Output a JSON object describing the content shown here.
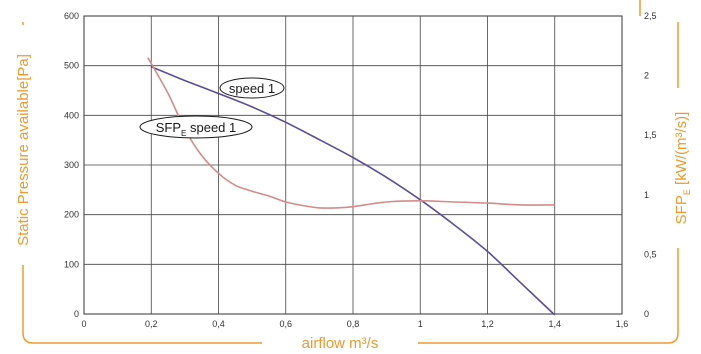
{
  "chart_data": {
    "type": "line",
    "x_label": "airflow m³/s",
    "y_left_label": "Static Pressure available[Pa]",
    "y_right_label": {
      "main": "SFP",
      "sub": "E",
      "rest": " [kW/(m³/s)]"
    },
    "x_range": [
      0,
      1.6
    ],
    "y_left_range": [
      0,
      600
    ],
    "y_right_range": [
      0,
      2.5
    ],
    "x_ticks": [
      "0",
      "0,2",
      "0,4",
      "0,6",
      "0,8",
      "1",
      "1,2",
      "1,4",
      "1,6"
    ],
    "y_left_ticks": [
      "0",
      "100",
      "200",
      "300",
      "400",
      "500",
      "600"
    ],
    "y_right_ticks": [
      "0",
      "0,5",
      "1",
      "1,5",
      "2",
      "2,5"
    ],
    "grid": true,
    "colors": {
      "pressure": "#5b4e95",
      "sfp": "#d48b8b",
      "accent": "#ee9a2e",
      "grid": "#444444"
    },
    "series": [
      {
        "name": "speed 1",
        "axis": "left",
        "x": [
          0.2,
          0.3,
          0.4,
          0.5,
          0.6,
          0.7,
          0.8,
          0.9,
          1.0,
          1.1,
          1.2,
          1.3,
          1.4
        ],
        "y": [
          498,
          470,
          444,
          417,
          386,
          351,
          315,
          275,
          230,
          180,
          126,
          62,
          -2
        ]
      },
      {
        "name": "SFP speed 1",
        "label": {
          "main": "SFP",
          "sub": "E",
          "rest": " speed 1"
        },
        "axis": "right",
        "x": [
          0.19,
          0.25,
          0.3,
          0.35,
          0.4,
          0.45,
          0.5,
          0.55,
          0.6,
          0.65,
          0.7,
          0.75,
          0.8,
          0.9,
          1.0,
          1.1,
          1.2,
          1.3,
          1.4
        ],
        "y": [
          2.15,
          1.85,
          1.55,
          1.33,
          1.18,
          1.08,
          1.03,
          0.99,
          0.94,
          0.91,
          0.89,
          0.89,
          0.9,
          0.94,
          0.95,
          0.94,
          0.93,
          0.915,
          0.915
        ]
      }
    ]
  }
}
